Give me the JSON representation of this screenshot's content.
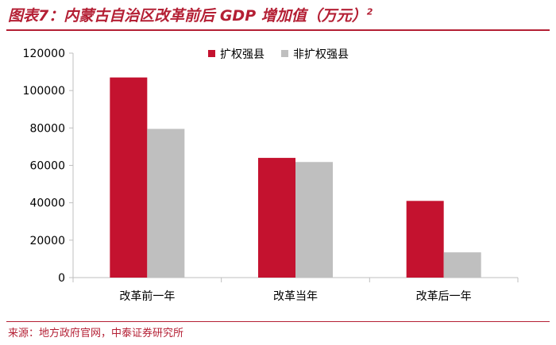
{
  "header": {
    "title": "图表7：内蒙古自治区改革前后 GDP 增加值（万元）",
    "title_sup": "2"
  },
  "footer": {
    "source": "来源：地方政府官网，中泰证券研究所"
  },
  "colors": {
    "accent": "#b41f34",
    "series1": "#c4122f",
    "series2": "#bfbfbf",
    "axis": "#bfbfbf"
  },
  "chart_data": {
    "type": "bar",
    "categories": [
      "改革前一年",
      "改革当年",
      "改革后一年"
    ],
    "series": [
      {
        "name": "扩权强县",
        "values": [
          107000,
          64000,
          41000
        ]
      },
      {
        "name": "非扩权强县",
        "values": [
          79500,
          61800,
          13500
        ]
      }
    ],
    "ylim": [
      0,
      120000
    ],
    "yticks": [
      0,
      20000,
      40000,
      60000,
      80000,
      100000,
      120000
    ],
    "grid": false,
    "legend_position": "top-right"
  }
}
